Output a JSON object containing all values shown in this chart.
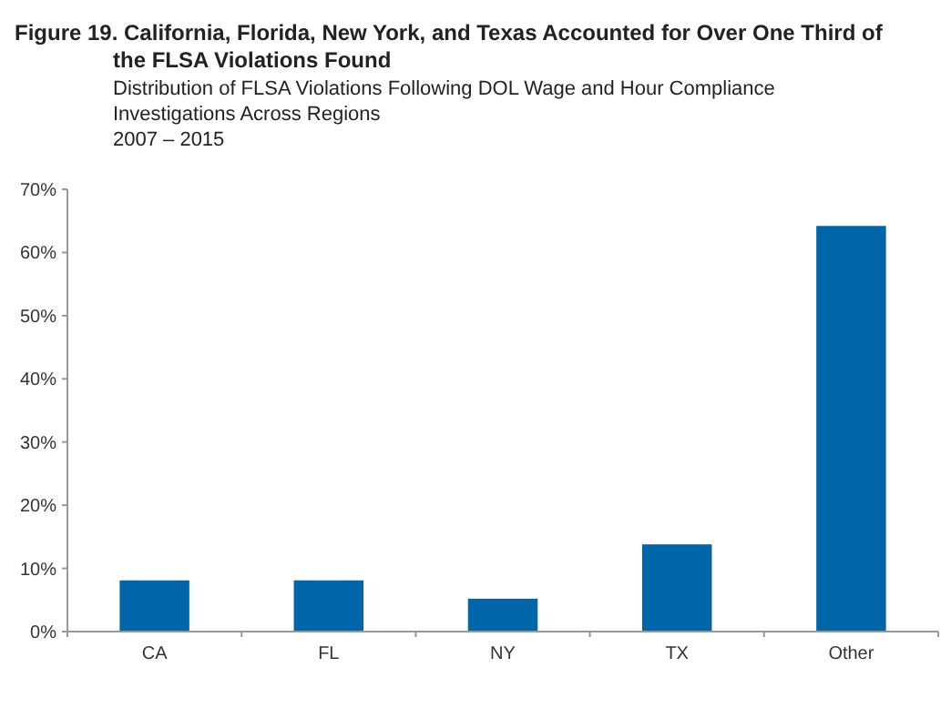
{
  "chart_data": {
    "type": "bar",
    "title": "Figure 19. California, Florida, New York, and Texas Accounted for Over One Third of the FLSA Violations Found",
    "subtitle": "Distribution of FLSA Violations Following DOL Wage and Hour Compliance Investigations Across Regions\n2007 – 2015",
    "categories": [
      "CA",
      "FL",
      "NY",
      "TX",
      "Other"
    ],
    "values": [
      8.1,
      8.1,
      5.2,
      13.8,
      64.2
    ],
    "color": "#0066aa",
    "ylim": [
      0,
      70
    ],
    "yticks": [
      {
        "value": 0,
        "label": "0%"
      },
      {
        "value": 10,
        "label": "10%"
      },
      {
        "value": 20,
        "label": "20%"
      },
      {
        "value": 30,
        "label": "30%"
      },
      {
        "value": 40,
        "label": "40%"
      },
      {
        "value": 50,
        "label": "50%"
      },
      {
        "value": 60,
        "label": "60%"
      },
      {
        "value": 70,
        "label": "70%"
      }
    ]
  }
}
